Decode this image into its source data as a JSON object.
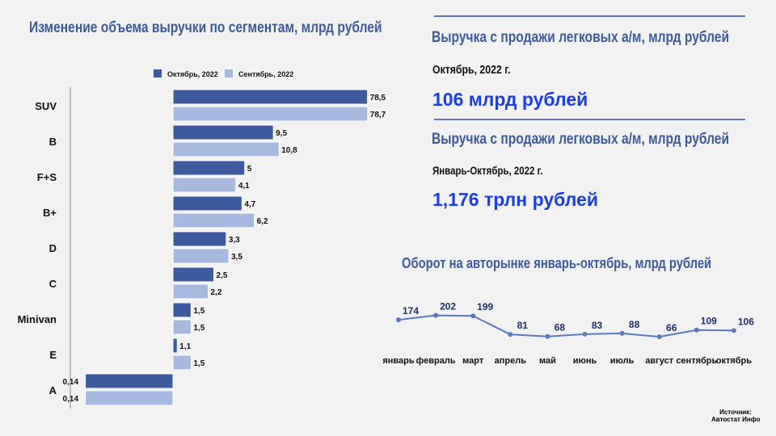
{
  "left_chart_title": "Изменение объема выручки по сегментам, млрд рублей",
  "right": {
    "block1_title": "Выручка с продажи легковых а/м, млрд рублей",
    "block1_period": "Октябрь, 2022 г.",
    "block1_value": "106 млрд рублей",
    "block2_title": "Выручка с продажи легковых а/м, млрд рублей",
    "block2_period": "Январь-Октябрь, 2022 г.",
    "block2_value": "1,176 трлн рублей",
    "line_chart_title": "Оборот на авторынке январь-октябрь, млрд рублей"
  },
  "source": {
    "line1": "Источник:",
    "line2": "Автостат Инфо"
  },
  "colors": {
    "october": "#3d5a9c",
    "september": "#a8b9e0",
    "line": "#5b78c0",
    "accent": "#1a3cf0"
  },
  "chart_data": [
    {
      "type": "bar",
      "orientation": "horizontal",
      "scale": "log",
      "title": "Изменение объема выручки по сегментам, млрд рублей",
      "legend_position": "top",
      "categories": [
        "SUV",
        "B",
        "F+S",
        "B+",
        "D",
        "C",
        "Minivan",
        "E",
        "A"
      ],
      "series": [
        {
          "name": "Октябрь, 2022",
          "values": [
            78.5,
            9.5,
            5,
            4.7,
            3.3,
            2.5,
            1.5,
            1.1,
            0.14
          ],
          "labels": [
            "78,5",
            "9,5",
            "5",
            "4,7",
            "3,3",
            "2,5",
            "1,5",
            "1,1",
            "0,14"
          ]
        },
        {
          "name": "Сентябрь, 2022",
          "values": [
            78.7,
            10.8,
            4.1,
            6.2,
            3.5,
            2.2,
            1.5,
            1.5,
            0.14
          ],
          "labels": [
            "78,7",
            "10,8",
            "4,1",
            "6,2",
            "3,5",
            "2,2",
            "1,5",
            "1,5",
            "0,14"
          ]
        }
      ]
    },
    {
      "type": "line",
      "title": "Оборот на авторынке январь-октябрь, млрд рублей",
      "categories": [
        "январь",
        "февраль",
        "март",
        "апрель",
        "май",
        "июнь",
        "июль",
        "август",
        "сентябрь",
        "октябрь"
      ],
      "values": [
        174,
        202,
        199,
        81,
        68,
        83,
        88,
        66,
        109,
        106
      ]
    }
  ]
}
